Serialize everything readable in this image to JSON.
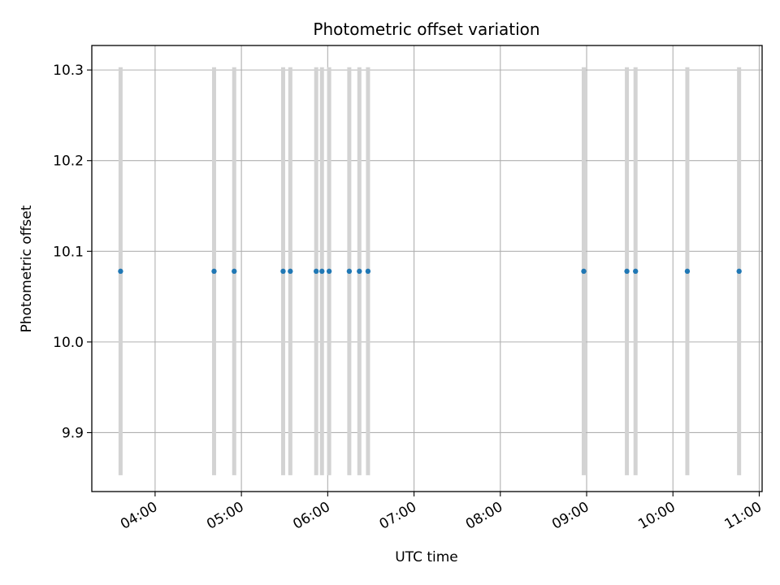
{
  "chart_data": {
    "type": "scatter",
    "title": "Photometric offset variation",
    "xlabel": "UTC time",
    "ylabel": "Photometric offset",
    "grid": true,
    "xlim": [
      "03:16",
      "11:02"
    ],
    "ylim": [
      9.835,
      10.327
    ],
    "x_ticks": [
      "04:00",
      "05:00",
      "06:00",
      "07:00",
      "08:00",
      "09:00",
      "10:00",
      "11:00"
    ],
    "y_ticks": [
      "9.9",
      "10.0",
      "10.1",
      "10.2",
      "10.3"
    ],
    "series": [
      {
        "color": "#1f77b4",
        "error_color": "#d3d3d3",
        "points": [
          {
            "x": "03:36",
            "y": 10.078,
            "err": 0.225
          },
          {
            "x": "04:41",
            "y": 10.078,
            "err": 0.225
          },
          {
            "x": "04:55",
            "y": 10.078,
            "err": 0.225
          },
          {
            "x": "05:29",
            "y": 10.078,
            "err": 0.225
          },
          {
            "x": "05:34",
            "y": 10.078,
            "err": 0.225
          },
          {
            "x": "05:52",
            "y": 10.078,
            "err": 0.225
          },
          {
            "x": "05:56",
            "y": 10.078,
            "err": 0.225
          },
          {
            "x": "06:01",
            "y": 10.078,
            "err": 0.225
          },
          {
            "x": "06:15",
            "y": 10.078,
            "err": 0.225
          },
          {
            "x": "06:22",
            "y": 10.078,
            "err": 0.225
          },
          {
            "x": "06:28",
            "y": 10.078,
            "err": 0.225
          },
          {
            "x": "08:58",
            "y": 10.078,
            "err": 0.225
          },
          {
            "x": "09:28",
            "y": 10.078,
            "err": 0.225
          },
          {
            "x": "09:34",
            "y": 10.078,
            "err": 0.225
          },
          {
            "x": "10:10",
            "y": 10.078,
            "err": 0.225
          },
          {
            "x": "10:46",
            "y": 10.078,
            "err": 0.225
          }
        ]
      }
    ]
  }
}
